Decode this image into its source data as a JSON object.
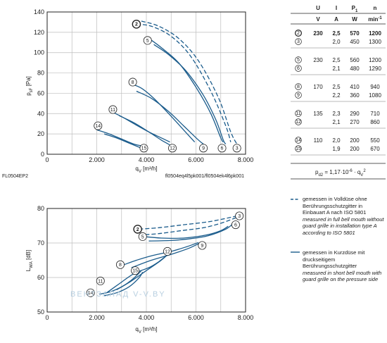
{
  "colors": {
    "curve": "#1b5c8c",
    "grid": "#bdbdbd",
    "frame": "#222222"
  },
  "chart_data": [
    {
      "type": "line",
      "ylabel": "p_sF [Pa]",
      "xlabel": "q_V [m³/h]",
      "xlim": [
        0,
        8000
      ],
      "ylim": [
        0,
        140
      ],
      "xticks": [
        "0",
        "2.000",
        "4.000",
        "6.000",
        "8.000"
      ],
      "yticks": [
        "0",
        "20",
        "40",
        "60",
        "80",
        "100",
        "120",
        "140"
      ],
      "grid": true,
      "footer_left": "FL0504EP2",
      "footer_right": "fl0504eq4l5pk001/fl0504ek4l6pk001",
      "series": [
        {
          "id": "2",
          "dashed": true,
          "x": [
            3600,
            4200,
            5000,
            5800,
            6600,
            7200,
            7400
          ],
          "y": [
            128,
            126,
            116,
            96,
            62,
            28,
            12
          ]
        },
        {
          "id": "5",
          "dashed": false,
          "x": [
            4100,
            4600,
            5300,
            6000,
            6600,
            7000,
            7100
          ],
          "y": [
            114,
            105,
            90,
            66,
            40,
            16,
            12
          ]
        },
        {
          "id": "8",
          "dashed": false,
          "x": [
            3300,
            3800,
            4300,
            4900,
            5500,
            5950
          ],
          "y": [
            70,
            65,
            55,
            40,
            24,
            12
          ]
        },
        {
          "id": "11",
          "dashed": false,
          "x": [
            2500,
            3000,
            3500,
            4100,
            4700,
            4950
          ],
          "y": [
            43,
            37,
            30,
            22,
            15,
            12
          ]
        },
        {
          "id": "14",
          "dashed": false,
          "x": [
            2000,
            2500,
            3000,
            3500,
            3900
          ],
          "y": [
            24,
            20,
            15,
            10,
            8
          ]
        },
        {
          "id": "3",
          "dashed": true,
          "x": [
            3800,
            4500,
            5300,
            6100,
            6900,
            7400,
            7650
          ],
          "y": [
            131,
            126,
            114,
            92,
            56,
            22,
            10
          ]
        },
        {
          "id": "6",
          "dashed": false,
          "x": [
            4300,
            4900,
            5600,
            6300,
            6800,
            7100,
            7200
          ],
          "y": [
            108,
            98,
            82,
            58,
            34,
            14,
            10
          ]
        },
        {
          "id": "9",
          "dashed": false,
          "x": [
            3600,
            4200,
            4900,
            5500,
            6100,
            6300
          ],
          "y": [
            62,
            55,
            42,
            28,
            14,
            10
          ]
        },
        {
          "id": "12",
          "dashed": false,
          "x": [
            2900,
            3500,
            4100,
            4600,
            4950,
            5000
          ],
          "y": [
            38,
            31,
            22,
            14,
            9,
            7
          ]
        },
        {
          "id": "15",
          "dashed": false,
          "x": [
            2300,
            2800,
            3300,
            3700,
            3900
          ],
          "y": [
            20,
            16,
            11,
            7,
            5
          ]
        }
      ],
      "markers": [
        {
          "label": "2",
          "x": 3600,
          "y": 128
        },
        {
          "label": "5",
          "x": 4050,
          "y": 112
        },
        {
          "label": "8",
          "x": 3450,
          "y": 71
        },
        {
          "label": "11",
          "x": 2650,
          "y": 44
        },
        {
          "label": "14",
          "x": 2050,
          "y": 28
        },
        {
          "label": "15",
          "x": 3900,
          "y": 6
        },
        {
          "label": "12",
          "x": 5050,
          "y": 6
        },
        {
          "label": "9",
          "x": 6300,
          "y": 6
        },
        {
          "label": "6",
          "x": 7050,
          "y": 6
        },
        {
          "label": "3",
          "x": 7650,
          "y": 6
        }
      ]
    },
    {
      "type": "line",
      "ylabel": "L_WA [dB]",
      "xlabel": "q_V [m³/h]",
      "xlim": [
        0,
        8000
      ],
      "ylim": [
        50,
        85
      ],
      "xticks": [
        "0",
        "2.000",
        "4.000",
        "6.000",
        "8.000"
      ],
      "yticks": [
        "50",
        "60",
        "70",
        "80"
      ],
      "grid": true,
      "series": [
        {
          "id": "2",
          "dashed": true,
          "x": [
            3700,
            4500,
            5500,
            6500,
            7300,
            7650
          ],
          "y": [
            78,
            78.5,
            79.5,
            80.5,
            81.8,
            82.5
          ]
        },
        {
          "id": "5",
          "dashed": false,
          "x": [
            3900,
            4600,
            5500,
            6400,
            7000,
            7300
          ],
          "y": [
            75.5,
            75,
            75,
            76,
            77.5,
            79
          ]
        },
        {
          "id": "8",
          "dashed": false,
          "x": [
            3100,
            3600,
            4200,
            5000,
            5600,
            6100
          ],
          "y": [
            66,
            67.5,
            69,
            70.5,
            72,
            73.5
          ]
        },
        {
          "id": "11",
          "dashed": false,
          "x": [
            2400,
            2900,
            3500,
            4100,
            4500,
            4950
          ],
          "y": [
            56.5,
            59.5,
            63,
            65,
            67,
            70
          ]
        },
        {
          "id": "14",
          "dashed": false,
          "x": [
            2100,
            2600,
            3100,
            3500,
            3800
          ],
          "y": [
            56,
            57,
            59,
            61.5,
            64
          ]
        },
        {
          "id": "3",
          "dashed": true,
          "x": [
            3700,
            4500,
            5400,
            6300,
            7000,
            7650
          ],
          "y": [
            76,
            76.5,
            77.5,
            78.5,
            80,
            82
          ]
        },
        {
          "id": "6",
          "dashed": false,
          "x": [
            4100,
            5000,
            5800,
            6500,
            7200,
            7500
          ],
          "y": [
            74,
            74.2,
            74.8,
            75.8,
            78,
            80
          ]
        },
        {
          "id": "9",
          "dashed": false,
          "x": [
            3400,
            4200,
            5000,
            5700,
            6200
          ],
          "y": [
            65,
            67.5,
            69.5,
            71.5,
            73.5
          ]
        },
        {
          "id": "12",
          "dashed": false,
          "x": [
            2800,
            3400,
            4000,
            4600,
            5000
          ],
          "y": [
            57.5,
            60.5,
            64,
            67.5,
            70.5
          ]
        },
        {
          "id": "15",
          "dashed": false,
          "x": [
            2300,
            2800,
            3300,
            3700,
            3850
          ],
          "y": [
            55.5,
            56.5,
            58.5,
            61.5,
            63.5
          ]
        }
      ],
      "markers": [
        {
          "label": "2",
          "x": 3650,
          "y": 78
        },
        {
          "label": "5",
          "x": 3850,
          "y": 75.5
        },
        {
          "label": "8",
          "x": 2950,
          "y": 66
        },
        {
          "label": "11",
          "x": 2150,
          "y": 60.5
        },
        {
          "label": "14",
          "x": 1750,
          "y": 56.5
        },
        {
          "label": "15",
          "x": 3550,
          "y": 64
        },
        {
          "label": "12",
          "x": 4850,
          "y": 70.5
        },
        {
          "label": "9",
          "x": 6250,
          "y": 72.5
        },
        {
          "label": "6",
          "x": 7600,
          "y": 79.5
        },
        {
          "label": "3",
          "x": 7750,
          "y": 82.5
        }
      ]
    },
    {
      "type": "table",
      "headers": [
        "U",
        "I",
        "P₁",
        "n"
      ],
      "units": [
        "V",
        "A",
        "W",
        "min⁻¹"
      ],
      "groups": [
        {
          "rows": [
            {
              "id": "2",
              "U": "230",
              "I": "2,5",
              "P": "570",
              "n": "1200"
            },
            {
              "id": "3",
              "U": "",
              "I": "2,0",
              "P": "450",
              "n": "1300"
            }
          ]
        },
        {
          "rows": [
            {
              "id": "5",
              "U": "230",
              "I": "2,5",
              "P": "560",
              "n": "1200"
            },
            {
              "id": "6",
              "U": "",
              "I": "2,1",
              "P": "480",
              "n": "1290"
            }
          ]
        },
        {
          "rows": [
            {
              "id": "8",
              "U": "170",
              "I": "2,5",
              "P": "410",
              "n": "940"
            },
            {
              "id": "9",
              "U": "",
              "I": "2,2",
              "P": "360",
              "n": "1080"
            }
          ]
        },
        {
          "rows": [
            {
              "id": "11",
              "U": "135",
              "I": "2,3",
              "P": "290",
              "n": "710"
            },
            {
              "id": "12",
              "U": "",
              "I": "2,1",
              "P": "270",
              "n": "860"
            }
          ]
        },
        {
          "rows": [
            {
              "id": "14",
              "U": "110",
              "I": "2,0",
              "P": "200",
              "n": "550"
            },
            {
              "id": "15",
              "U": "",
              "I": "1,9",
              "P": "200",
              "n": "670"
            }
          ]
        }
      ],
      "formula": "p_d2 = 1,17·10⁻⁶ · q_V²"
    }
  ],
  "legend": {
    "dashed_de": "gemessen in Volldüse ohne Berührungsschutzgitter in Einbauart A nach ISO 5801",
    "dashed_en": "measured in full bell mouth without guard grille in installation type A according to ISO 5801",
    "solid_de": "gemessen in Kurzdüse mit druckseitigem Berührungsschutzgitter",
    "solid_en": "measured in short bell mouth with guard grille on the pressure side"
  },
  "watermark": "ВЕНТЗАПАД   V-V.BY"
}
